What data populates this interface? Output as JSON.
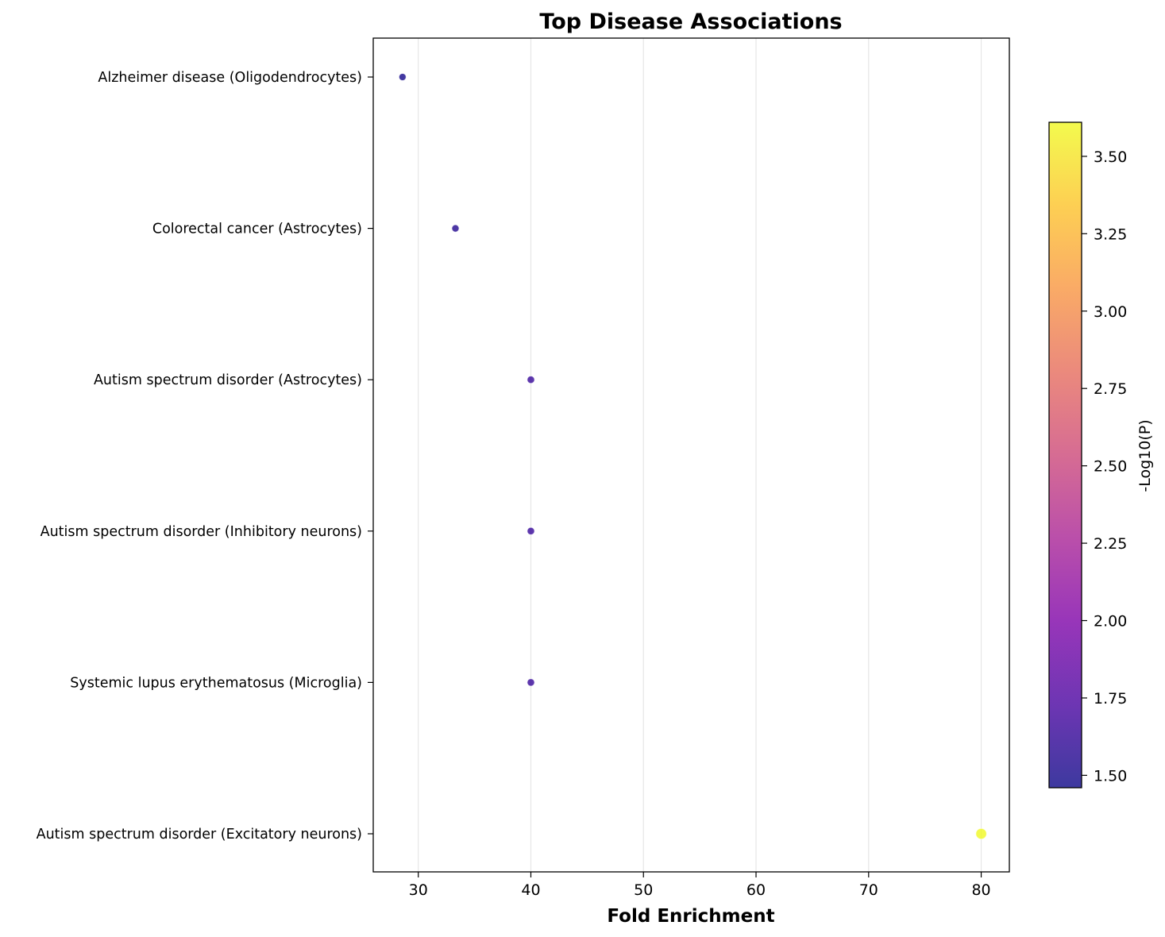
{
  "chart_data": {
    "type": "scatter",
    "title": "Top Disease Associations",
    "xlabel": "Fold Enrichment",
    "ylabel": "",
    "xlim": [
      26,
      82.5
    ],
    "xticks": [
      30,
      40,
      50,
      60,
      70,
      80
    ],
    "grid": "vertical",
    "categories": [
      "Alzheimer disease (Oligodendrocytes)",
      "Colorectal cancer (Astrocytes)",
      "Autism spectrum disorder (Astrocytes)",
      "Autism spectrum disorder (Inhibitory neurons)",
      "Systemic lupus erythematosus (Microglia)",
      "Autism spectrum disorder (Excitatory neurons)"
    ],
    "points": [
      {
        "category": "Alzheimer disease (Oligodendrocytes)",
        "x": 28.6,
        "color_value": 1.49
      },
      {
        "category": "Colorectal cancer (Astrocytes)",
        "x": 33.3,
        "color_value": 1.55
      },
      {
        "category": "Autism spectrum disorder (Astrocytes)",
        "x": 40.0,
        "color_value": 1.64
      },
      {
        "category": "Autism spectrum disorder (Inhibitory neurons)",
        "x": 40.0,
        "color_value": 1.64
      },
      {
        "category": "Systemic lupus erythematosus (Microglia)",
        "x": 40.0,
        "color_value": 1.64
      },
      {
        "category": "Autism spectrum disorder (Excitatory neurons)",
        "x": 80.0,
        "color_value": 3.61
      }
    ],
    "colorbar": {
      "label": "-Log10(P)",
      "colormap": "plasma",
      "range": [
        1.46,
        3.61
      ],
      "ticks": [
        "1.50",
        "1.75",
        "2.00",
        "2.25",
        "2.50",
        "2.75",
        "3.00",
        "3.25",
        "3.50"
      ],
      "tick_values": [
        1.5,
        1.75,
        2.0,
        2.25,
        2.5,
        2.75,
        3.0,
        3.25,
        3.5
      ]
    }
  }
}
